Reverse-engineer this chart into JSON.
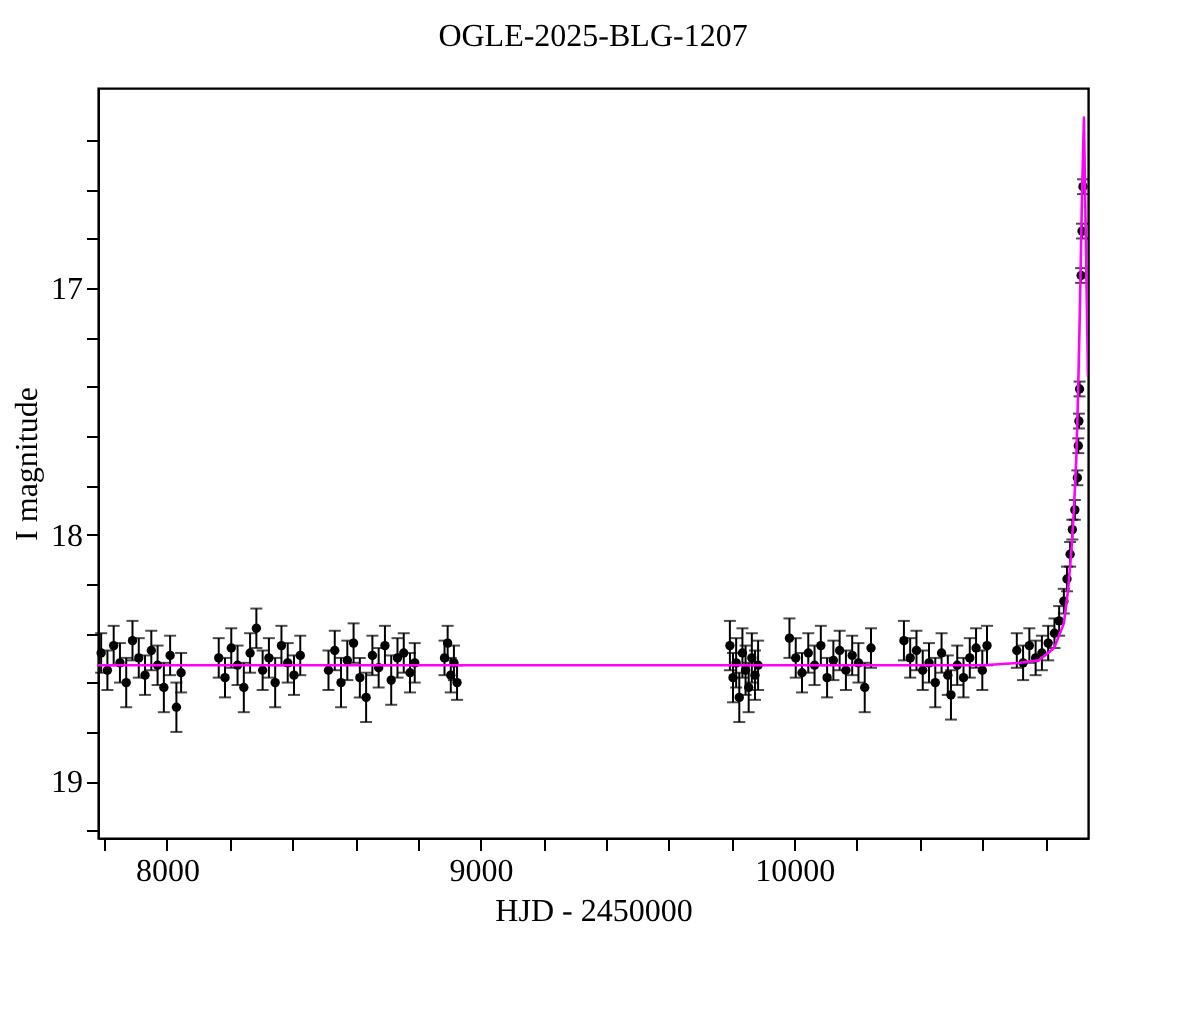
{
  "chart_data": {
    "type": "scatter",
    "title": "OGLE-2025-BLG-1207",
    "xlabel": "HJD - 2450000",
    "ylabel": "I magnitude",
    "xlim": [
      7780,
      10937
    ],
    "ylim": [
      19.23,
      16.19
    ],
    "xticks": [
      {
        "value": 7800,
        "label": null
      },
      8000,
      {
        "value": 8200,
        "label": null
      },
      {
        "value": 8400,
        "label": null
      },
      {
        "value": 8600,
        "label": null
      },
      {
        "value": 8800,
        "label": null
      },
      9000,
      {
        "value": 9200,
        "label": null
      },
      {
        "value": 9400,
        "label": null
      },
      {
        "value": 9600,
        "label": null
      },
      {
        "value": 9800,
        "label": null
      },
      10000,
      {
        "value": 10200,
        "label": null
      },
      {
        "value": 10400,
        "label": null
      },
      {
        "value": 10600,
        "label": null
      },
      {
        "value": 10800,
        "label": null
      }
    ],
    "yticks": [
      {
        "value": 16.4,
        "label": null
      },
      {
        "value": 16.6,
        "label": null
      },
      {
        "value": 16.8,
        "label": null
      },
      17,
      {
        "value": 17.2,
        "label": null
      },
      {
        "value": 17.4,
        "label": null
      },
      {
        "value": 17.6,
        "label": null
      },
      {
        "value": 17.8,
        "label": null
      },
      18,
      {
        "value": 18.2,
        "label": null
      },
      {
        "value": 18.4,
        "label": null
      },
      {
        "value": 18.6,
        "label": null
      },
      {
        "value": 18.8,
        "label": null
      },
      19,
      {
        "value": 19.2,
        "label": null
      }
    ],
    "grid": false,
    "legend": false,
    "series": [
      {
        "color": "#000000",
        "marker": "circle",
        "x": [
          7790,
          7810,
          7830,
          7850,
          7870,
          7890,
          7910,
          7930,
          7950,
          7970,
          7990,
          8010,
          8030,
          8045,
          8165,
          8185,
          8205,
          8225,
          8245,
          8265,
          8285,
          8305,
          8325,
          8345,
          8365,
          8385,
          8405,
          8425,
          8515,
          8535,
          8555,
          8575,
          8595,
          8615,
          8635,
          8655,
          8675,
          8695,
          8715,
          8735,
          8755,
          8775,
          8790,
          8885,
          8895,
          8905,
          8915,
          8925,
          9795,
          9805,
          9815,
          9825,
          9835,
          9845,
          9855,
          9865,
          9875,
          9885,
          9985,
          10005,
          10025,
          10045,
          10065,
          10085,
          10105,
          10125,
          10145,
          10165,
          10185,
          10205,
          10225,
          10245,
          10350,
          10370,
          10390,
          10410,
          10430,
          10450,
          10470,
          10490,
          10500,
          10520,
          10540,
          10560,
          10580,
          10600,
          10615,
          10710,
          10730,
          10750,
          10770,
          10790,
          10810,
          10830,
          10845,
          10860,
          10870,
          10880,
          10887,
          10895,
          10903,
          10906,
          10908,
          10910,
          10915,
          10918,
          10921
        ],
        "values": [
          18.48,
          18.55,
          18.45,
          18.52,
          18.6,
          18.43,
          18.5,
          18.57,
          18.47,
          18.53,
          18.62,
          18.49,
          18.7,
          18.56,
          18.5,
          18.58,
          18.46,
          18.53,
          18.62,
          18.48,
          18.38,
          18.55,
          18.5,
          18.6,
          18.45,
          18.52,
          18.57,
          18.49,
          18.55,
          18.47,
          18.6,
          18.51,
          18.44,
          18.58,
          18.66,
          18.49,
          18.54,
          18.45,
          18.59,
          18.5,
          18.48,
          18.56,
          18.52,
          18.5,
          18.44,
          18.57,
          18.52,
          18.6,
          18.45,
          18.58,
          18.52,
          18.66,
          18.48,
          18.55,
          18.62,
          18.5,
          18.57,
          18.53,
          18.42,
          18.5,
          18.56,
          18.48,
          18.53,
          18.45,
          18.58,
          18.51,
          18.47,
          18.55,
          18.49,
          18.52,
          18.62,
          18.46,
          18.43,
          18.5,
          18.47,
          18.55,
          18.52,
          18.6,
          18.48,
          18.57,
          18.65,
          18.53,
          18.58,
          18.5,
          18.46,
          18.55,
          18.45,
          18.47,
          18.52,
          18.45,
          18.5,
          18.48,
          18.44,
          18.4,
          18.35,
          18.27,
          18.18,
          18.08,
          17.98,
          17.9,
          17.77,
          17.64,
          17.54,
          17.41,
          16.95,
          16.77,
          16.59
        ],
        "errors": [
          0.08,
          0.08,
          0.08,
          0.08,
          0.1,
          0.08,
          0.08,
          0.08,
          0.08,
          0.08,
          0.1,
          0.08,
          0.1,
          0.08,
          0.08,
          0.08,
          0.08,
          0.08,
          0.1,
          0.08,
          0.08,
          0.08,
          0.08,
          0.1,
          0.08,
          0.08,
          0.08,
          0.08,
          0.08,
          0.08,
          0.1,
          0.08,
          0.08,
          0.08,
          0.1,
          0.08,
          0.08,
          0.08,
          0.1,
          0.08,
          0.08,
          0.08,
          0.08,
          0.07,
          0.07,
          0.07,
          0.07,
          0.07,
          0.1,
          0.1,
          0.1,
          0.1,
          0.1,
          0.1,
          0.1,
          0.1,
          0.1,
          0.1,
          0.08,
          0.08,
          0.08,
          0.08,
          0.08,
          0.08,
          0.08,
          0.08,
          0.08,
          0.08,
          0.08,
          0.08,
          0.1,
          0.08,
          0.08,
          0.08,
          0.08,
          0.08,
          0.08,
          0.1,
          0.08,
          0.08,
          0.1,
          0.08,
          0.08,
          0.08,
          0.08,
          0.08,
          0.08,
          0.07,
          0.07,
          0.07,
          0.07,
          0.07,
          0.07,
          0.06,
          0.06,
          0.05,
          0.05,
          0.05,
          0.04,
          0.04,
          0.03,
          0.03,
          0.03,
          0.03,
          0.03,
          0.03,
          0.03
        ]
      },
      {
        "type": "line",
        "color": "#ff00ff",
        "marker": "none",
        "x": [
          7780,
          10600,
          10720,
          10780,
          10829,
          10860,
          10873,
          10885,
          10892,
          10900,
          10905,
          10911,
          10918,
          10924,
          10930,
          10937
        ],
        "values": [
          18.53,
          18.53,
          18.52,
          18.51,
          18.46,
          18.36,
          18.23,
          18.05,
          17.9,
          17.68,
          17.45,
          17.1,
          16.62,
          16.31,
          16.8,
          17.36
        ]
      }
    ]
  }
}
